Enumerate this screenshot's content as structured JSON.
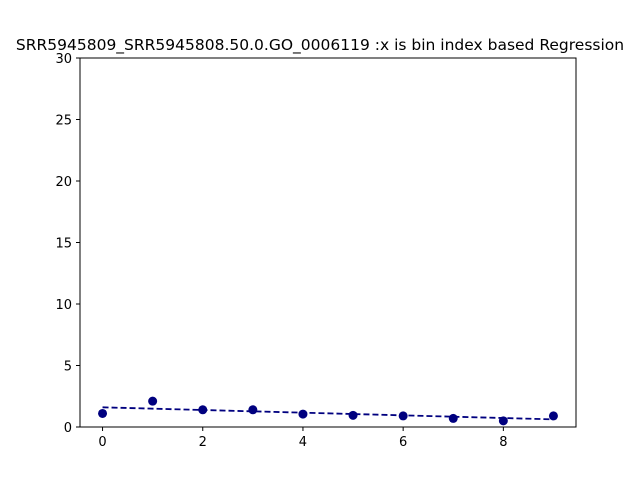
{
  "chart_data": {
    "type": "scatter",
    "title": "SRR5945809_SRR5945808.50.0.GO_0006119 :x is bin index based Regression",
    "xlabel": "",
    "ylabel": "",
    "xlim": [
      -0.45,
      9.45
    ],
    "ylim": [
      0,
      30
    ],
    "x_ticks": [
      0,
      2,
      4,
      6,
      8
    ],
    "y_ticks": [
      0,
      5,
      10,
      15,
      20,
      25,
      30
    ],
    "grid": false,
    "series": [
      {
        "kind": "points",
        "color": "#00007f",
        "x": [
          0,
          1,
          2,
          3,
          4,
          5,
          6,
          7,
          8,
          9
        ],
        "y": [
          1.1,
          2.1,
          1.4,
          1.4,
          1.05,
          0.95,
          0.9,
          0.7,
          0.5,
          0.9
        ]
      },
      {
        "kind": "regression-line",
        "style": "dashed",
        "color": "#00007f",
        "x": [
          0,
          9
        ],
        "y": [
          1.6,
          0.62
        ]
      }
    ]
  }
}
